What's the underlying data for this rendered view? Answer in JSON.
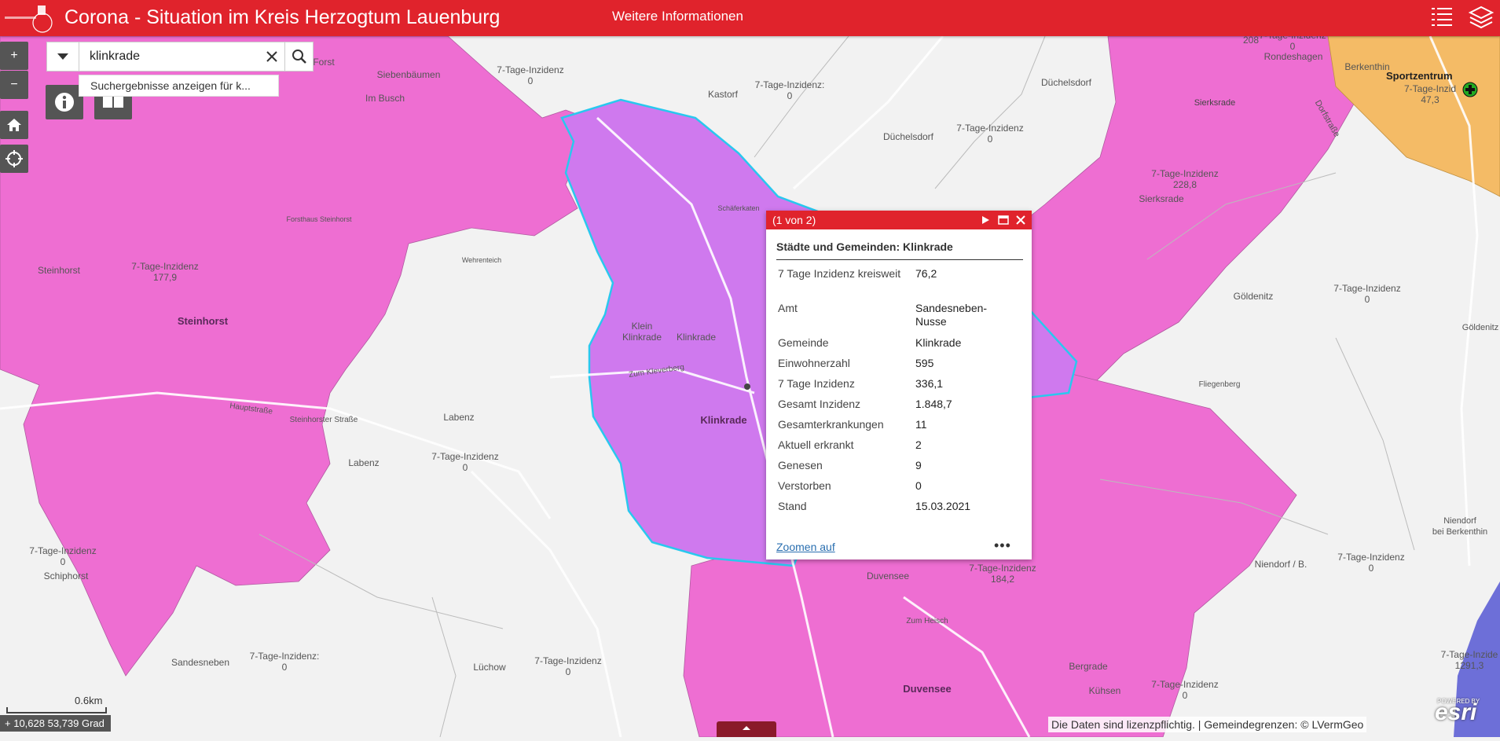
{
  "header": {
    "title": "Corona - Situation im Kreis Herzogtum Lauenburg",
    "more_info": "Weitere Informationen",
    "list_icon": "list-icon",
    "layers_icon": "layers-icon"
  },
  "colors": {
    "header_red": "#e0232c",
    "pink_area": "#ee6ed2",
    "selected_area": "#cf79ee",
    "orange_area": "#f4bb66",
    "blue_area": "#6d6fd8",
    "highlight_outline": "#29c8ee"
  },
  "controls": {
    "zoom_in": "+",
    "zoom_out": "−",
    "home_icon": "home-icon",
    "locate_icon": "locate-icon",
    "info_icon": "info-icon",
    "basemap_icon": "grid-icon"
  },
  "search": {
    "value": "klinkrade",
    "suggestion": "Suchergebnisse anzeigen für k..."
  },
  "popup": {
    "count": "(1 von 2)",
    "heading": "Städte und Gemeinden: Klinkrade",
    "rows": [
      {
        "key": "7 Tage Inzidenz kreisweit",
        "value": "76,2"
      },
      {
        "key": "Amt",
        "value": "Sandesneben-Nusse"
      },
      {
        "key": "Gemeinde",
        "value": "Klinkrade"
      },
      {
        "key": "Einwohnerzahl",
        "value": "595"
      },
      {
        "key": "7 Tage Inzidenz",
        "value": "336,1"
      },
      {
        "key": "Gesamt Inzidenz",
        "value": "1.848,7"
      },
      {
        "key": "Gesamterkrankungen",
        "value": "11"
      },
      {
        "key": "Aktuell erkrankt",
        "value": "2"
      },
      {
        "key": "Genesen",
        "value": "9"
      },
      {
        "key": "Verstorben",
        "value": "0"
      },
      {
        "key": "Stand",
        "value": "15.03.2021"
      }
    ],
    "zoom_link": "Zoomen auf",
    "more": "•••"
  },
  "map_labels": {
    "forst": "Forst",
    "siebenbaeumen": "Siebenbäumen",
    "im_busch": "Im Busch",
    "inz_siebenbaeumen": "7-Tage-Inzidenz\n0",
    "kastorf": "Kastorf",
    "inz_kastorf": "7-Tage-Inzidenz:\n0",
    "duechelsdorf": "Düchelsdorf",
    "duechelsdorf2": "Düchelsdorf",
    "inz_duechelsdorf": "7-Tage-Inzidenz\n0",
    "road_208": "208",
    "inz_rondeshagen": "7-Tage-Inzidenz\n0",
    "rondeshagen": "Rondeshagen",
    "berkenthin": "Berkenthin",
    "sportzentrum": "Sportzentrum",
    "inz_berkenthin": "7-Tage-Inzid\n47,3",
    "sierksrade": "Sierksrade",
    "dorfstrasse": "Dorfstraße",
    "inz_sierksrade": "7-Tage-Inzidenz\n228,8",
    "sierksrade2": "Sierksrade",
    "schaeferkaten": "Schäferkaten",
    "forsthaus": "Forsthaus Steinhorst",
    "wehrenteich": "Wehrenteich",
    "steinhorst": "Steinhorst",
    "inz_steinhorst": "7-Tage-Inzidenz\n177,9",
    "steinhorst_big": "Steinhorst",
    "klein_klinkrade": "Klein\nKlinkrade",
    "klinkrade_small": "Klinkrade",
    "klinkrade_big": "Klinkrade",
    "zum_kleverberg": "Zum Kleverberg",
    "hauptstrasse": "Hauptstraße",
    "steinhorster_strasse": "Steinhorster Straße",
    "labenz": "Labenz",
    "labenz2": "Labenz",
    "inz_labenz": "7-Tage-Inzidenz\n0",
    "goeldenitz": "Göldenitz",
    "inz_goeldenitz": "7-Tage-Inzidenz\n0",
    "goeldenitz2": "Göldenitz",
    "fliegenberg": "Fliegenberg",
    "inz_schiphorst": "7-Tage-Inzidenz\n0",
    "schiphorst": "Schiphorst",
    "duvensee": "Duvensee",
    "inz_duvensee": "7-Tage-Inzidenz\n184,2",
    "zum_heisch": "Zum Heisch",
    "duvensee_big": "Duvensee",
    "bergrade": "Bergrade",
    "sandesneben": "Sandesneben",
    "inz_sandesneben": "7-Tage-Inzidenz:\n0",
    "luechow": "Lüchow",
    "inz_luechow": "7-Tage-Inzidenz\n0",
    "niendorf_b": "Niendorf / B.",
    "inz_niendorf": "7-Tage-Inzidenz\n0",
    "niendorf_berk": "Niendorf\nbei Berkenthin",
    "kuehsen": "Kühsen",
    "inz_kuehsen": "7-Tage-Inzidenz\n0",
    "inz_blue": "7-Tage-Inzide\n1291,3"
  },
  "status": {
    "coords": "10,628 53,739 Grad",
    "scale": "0.6km",
    "attribution": "Die Daten sind lizenzpflichtig. | Gemeindegrenzen: © LVermGeo",
    "powered_by": "POWERED BY",
    "esri": "esri"
  }
}
